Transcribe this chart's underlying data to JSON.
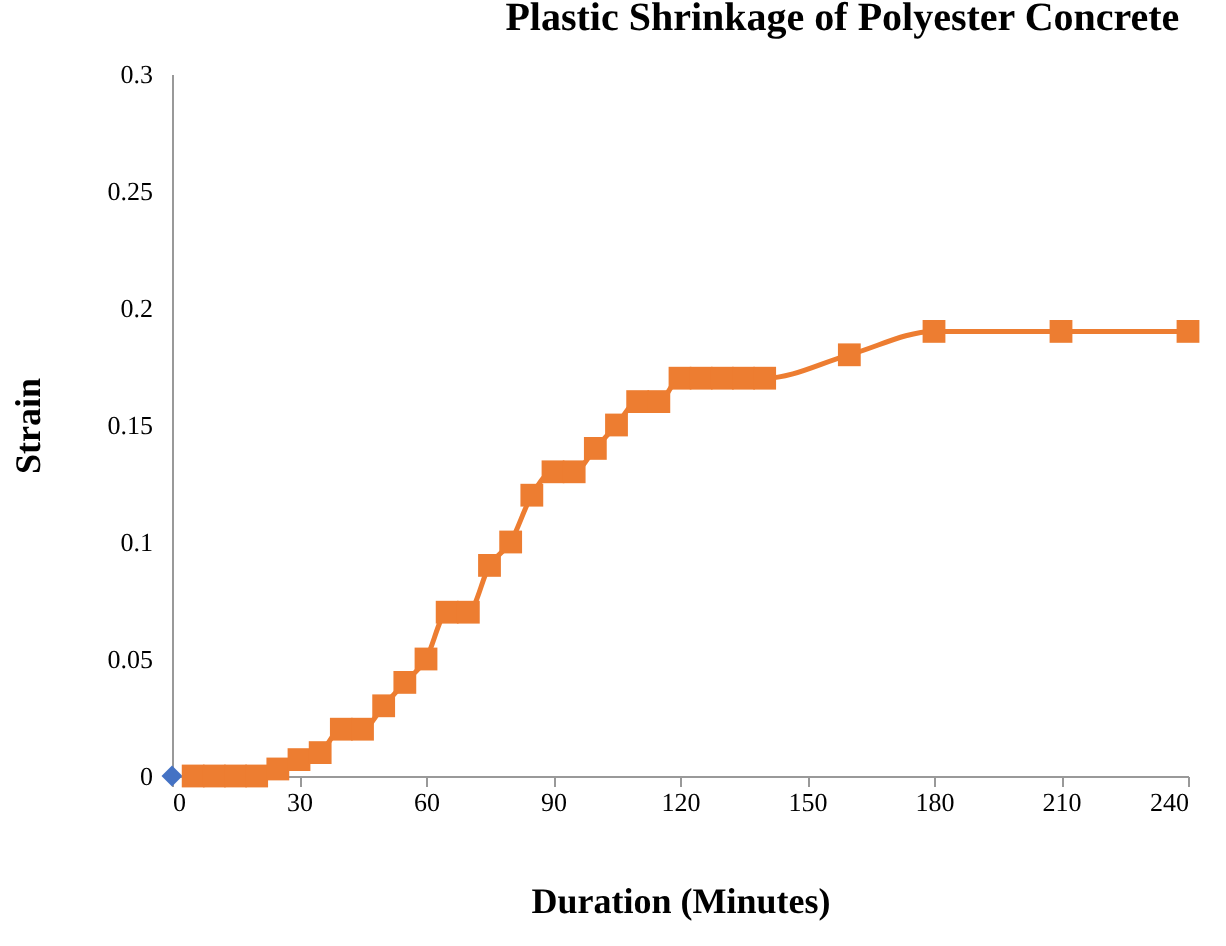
{
  "chart_data": {
    "type": "line",
    "title": "Plastic Shrinkage of Polyester Concrete",
    "xlabel": "Duration (Minutes)",
    "ylabel": "Strain",
    "xlim": [
      0,
      240
    ],
    "xticks": [
      0,
      30,
      60,
      90,
      120,
      150,
      180,
      210,
      240
    ],
    "ylim": [
      0,
      0.3
    ],
    "yticks": [
      0,
      0.05,
      0.1,
      0.15,
      0.2,
      0.25,
      0.3
    ],
    "grid": false,
    "series": [
      {
        "type": "scatter",
        "color": "#4472c4",
        "marker": "diamond",
        "x": [
          0
        ],
        "values": [
          0
        ]
      },
      {
        "color": "#ed7d31",
        "marker": "square",
        "x": [
          5,
          10,
          15,
          20,
          25,
          30,
          35,
          40,
          45,
          50,
          55,
          60,
          65,
          70,
          75,
          80,
          85,
          90,
          95,
          100,
          105,
          110,
          115,
          120,
          125,
          130,
          135,
          140,
          160,
          180,
          210,
          240
        ],
        "values": [
          0,
          0,
          0,
          0,
          0.003,
          0.007,
          0.01,
          0.02,
          0.02,
          0.03,
          0.04,
          0.05,
          0.07,
          0.07,
          0.09,
          0.1,
          0.12,
          0.13,
          0.13,
          0.14,
          0.15,
          0.16,
          0.16,
          0.17,
          0.17,
          0.17,
          0.17,
          0.17,
          0.18,
          0.19,
          0.19,
          0.19
        ]
      }
    ]
  }
}
